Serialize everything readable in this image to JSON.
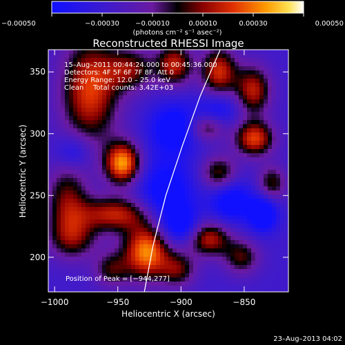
{
  "chart_data": {
    "type": "heatmap",
    "title": "Reconstructed RHESSI Image",
    "xlabel": "Heliocentric X (arcsec)",
    "ylabel": "Heliocentric Y (arcsec)",
    "xlim": [
      -1005,
      -815
    ],
    "ylim": [
      172,
      368
    ],
    "x_ticks": [
      {
        "value": -1000,
        "label": "−1000"
      },
      {
        "value": -950,
        "label": "−950"
      },
      {
        "value": -900,
        "label": "−900"
      },
      {
        "value": -850,
        "label": "−850"
      }
    ],
    "y_ticks": [
      {
        "value": 200,
        "label": "200"
      },
      {
        "value": 250,
        "label": "250"
      },
      {
        "value": 300,
        "label": "300"
      },
      {
        "value": 350,
        "label": "350"
      }
    ],
    "colorbar": {
      "units": "(photons cm⁻² s⁻¹ asec⁻²)",
      "range": [
        -0.0005,
        0.0005
      ],
      "ticks": [
        {
          "value": -0.0005,
          "label": "−0.00050"
        },
        {
          "value": -0.0003,
          "label": "−0.00030"
        },
        {
          "value": -0.0001,
          "label": "−0.00010"
        },
        {
          "value": 0.0001,
          "label": "0.00010"
        },
        {
          "value": 0.0003,
          "label": "0.00030"
        },
        {
          "value": 0.0005,
          "label": "0.00050"
        }
      ]
    },
    "annotations": {
      "time_range": "15–Aug–2011 00:44:24.000 to 00:45:36.000",
      "detectors": "Detectors: 4F 5F 6F 7F 8F, Att 0",
      "energy_range": "Energy Range: 12.0 – 25.0 keV",
      "clean_label": "Clean",
      "total_counts": "Total counts: 3.42E+03",
      "peak_position": "Position of Peak = [−944,277]"
    },
    "peak": {
      "x": -944,
      "y": 277
    },
    "limb_curve": [
      {
        "x": -929,
        "y": 172
      },
      {
        "x": -922,
        "y": 210
      },
      {
        "x": -912,
        "y": 250
      },
      {
        "x": -899,
        "y": 290
      },
      {
        "x": -885,
        "y": 330
      },
      {
        "x": -869,
        "y": 368
      }
    ],
    "intensity_blobs": [
      {
        "x": -946,
        "y": 276,
        "amp": 1.0,
        "sx": 10,
        "sy": 12
      },
      {
        "x": -927,
        "y": 205,
        "amp": 1.0,
        "sx": 13,
        "sy": 16
      },
      {
        "x": -952,
        "y": 235,
        "amp": 0.7,
        "sx": 20,
        "sy": 10
      },
      {
        "x": -990,
        "y": 245,
        "amp": 0.55,
        "sx": 12,
        "sy": 22
      },
      {
        "x": -985,
        "y": 215,
        "amp": 0.45,
        "sx": 14,
        "sy": 12
      },
      {
        "x": -972,
        "y": 335,
        "amp": 0.8,
        "sx": 16,
        "sy": 30
      },
      {
        "x": -940,
        "y": 352,
        "amp": 0.55,
        "sx": 14,
        "sy": 12
      },
      {
        "x": -905,
        "y": 356,
        "amp": 0.7,
        "sx": 10,
        "sy": 12
      },
      {
        "x": -870,
        "y": 350,
        "amp": 0.75,
        "sx": 10,
        "sy": 14
      },
      {
        "x": -843,
        "y": 335,
        "amp": 0.7,
        "sx": 10,
        "sy": 14
      },
      {
        "x": -842,
        "y": 296,
        "amp": 0.8,
        "sx": 11,
        "sy": 10
      },
      {
        "x": -880,
        "y": 305,
        "amp": 0.5,
        "sx": 10,
        "sy": 8
      },
      {
        "x": -870,
        "y": 268,
        "amp": 0.55,
        "sx": 10,
        "sy": 10
      },
      {
        "x": -828,
        "y": 260,
        "amp": 0.5,
        "sx": 8,
        "sy": 10
      },
      {
        "x": -878,
        "y": 215,
        "amp": 0.7,
        "sx": 12,
        "sy": 10
      },
      {
        "x": -852,
        "y": 200,
        "amp": 0.5,
        "sx": 10,
        "sy": 10
      },
      {
        "x": -902,
        "y": 190,
        "amp": 0.5,
        "sx": 10,
        "sy": 10
      },
      {
        "x": -955,
        "y": 190,
        "amp": 0.45,
        "sx": 10,
        "sy": 10
      },
      {
        "x": -912,
        "y": 250,
        "amp": -0.5,
        "sx": 16,
        "sy": 22
      },
      {
        "x": -860,
        "y": 245,
        "amp": -0.5,
        "sx": 12,
        "sy": 12
      },
      {
        "x": -835,
        "y": 235,
        "amp": -0.6,
        "sx": 8,
        "sy": 10
      },
      {
        "x": -905,
        "y": 305,
        "amp": -0.5,
        "sx": 14,
        "sy": 14
      },
      {
        "x": -870,
        "y": 320,
        "amp": -0.35,
        "sx": 12,
        "sy": 10
      },
      {
        "x": -900,
        "y": 225,
        "amp": -0.4,
        "sx": 10,
        "sy": 10
      },
      {
        "x": -985,
        "y": 285,
        "amp": -0.35,
        "sx": 10,
        "sy": 10
      }
    ]
  },
  "footer": {
    "timestamp": "23–Aug–2013 04:02"
  }
}
